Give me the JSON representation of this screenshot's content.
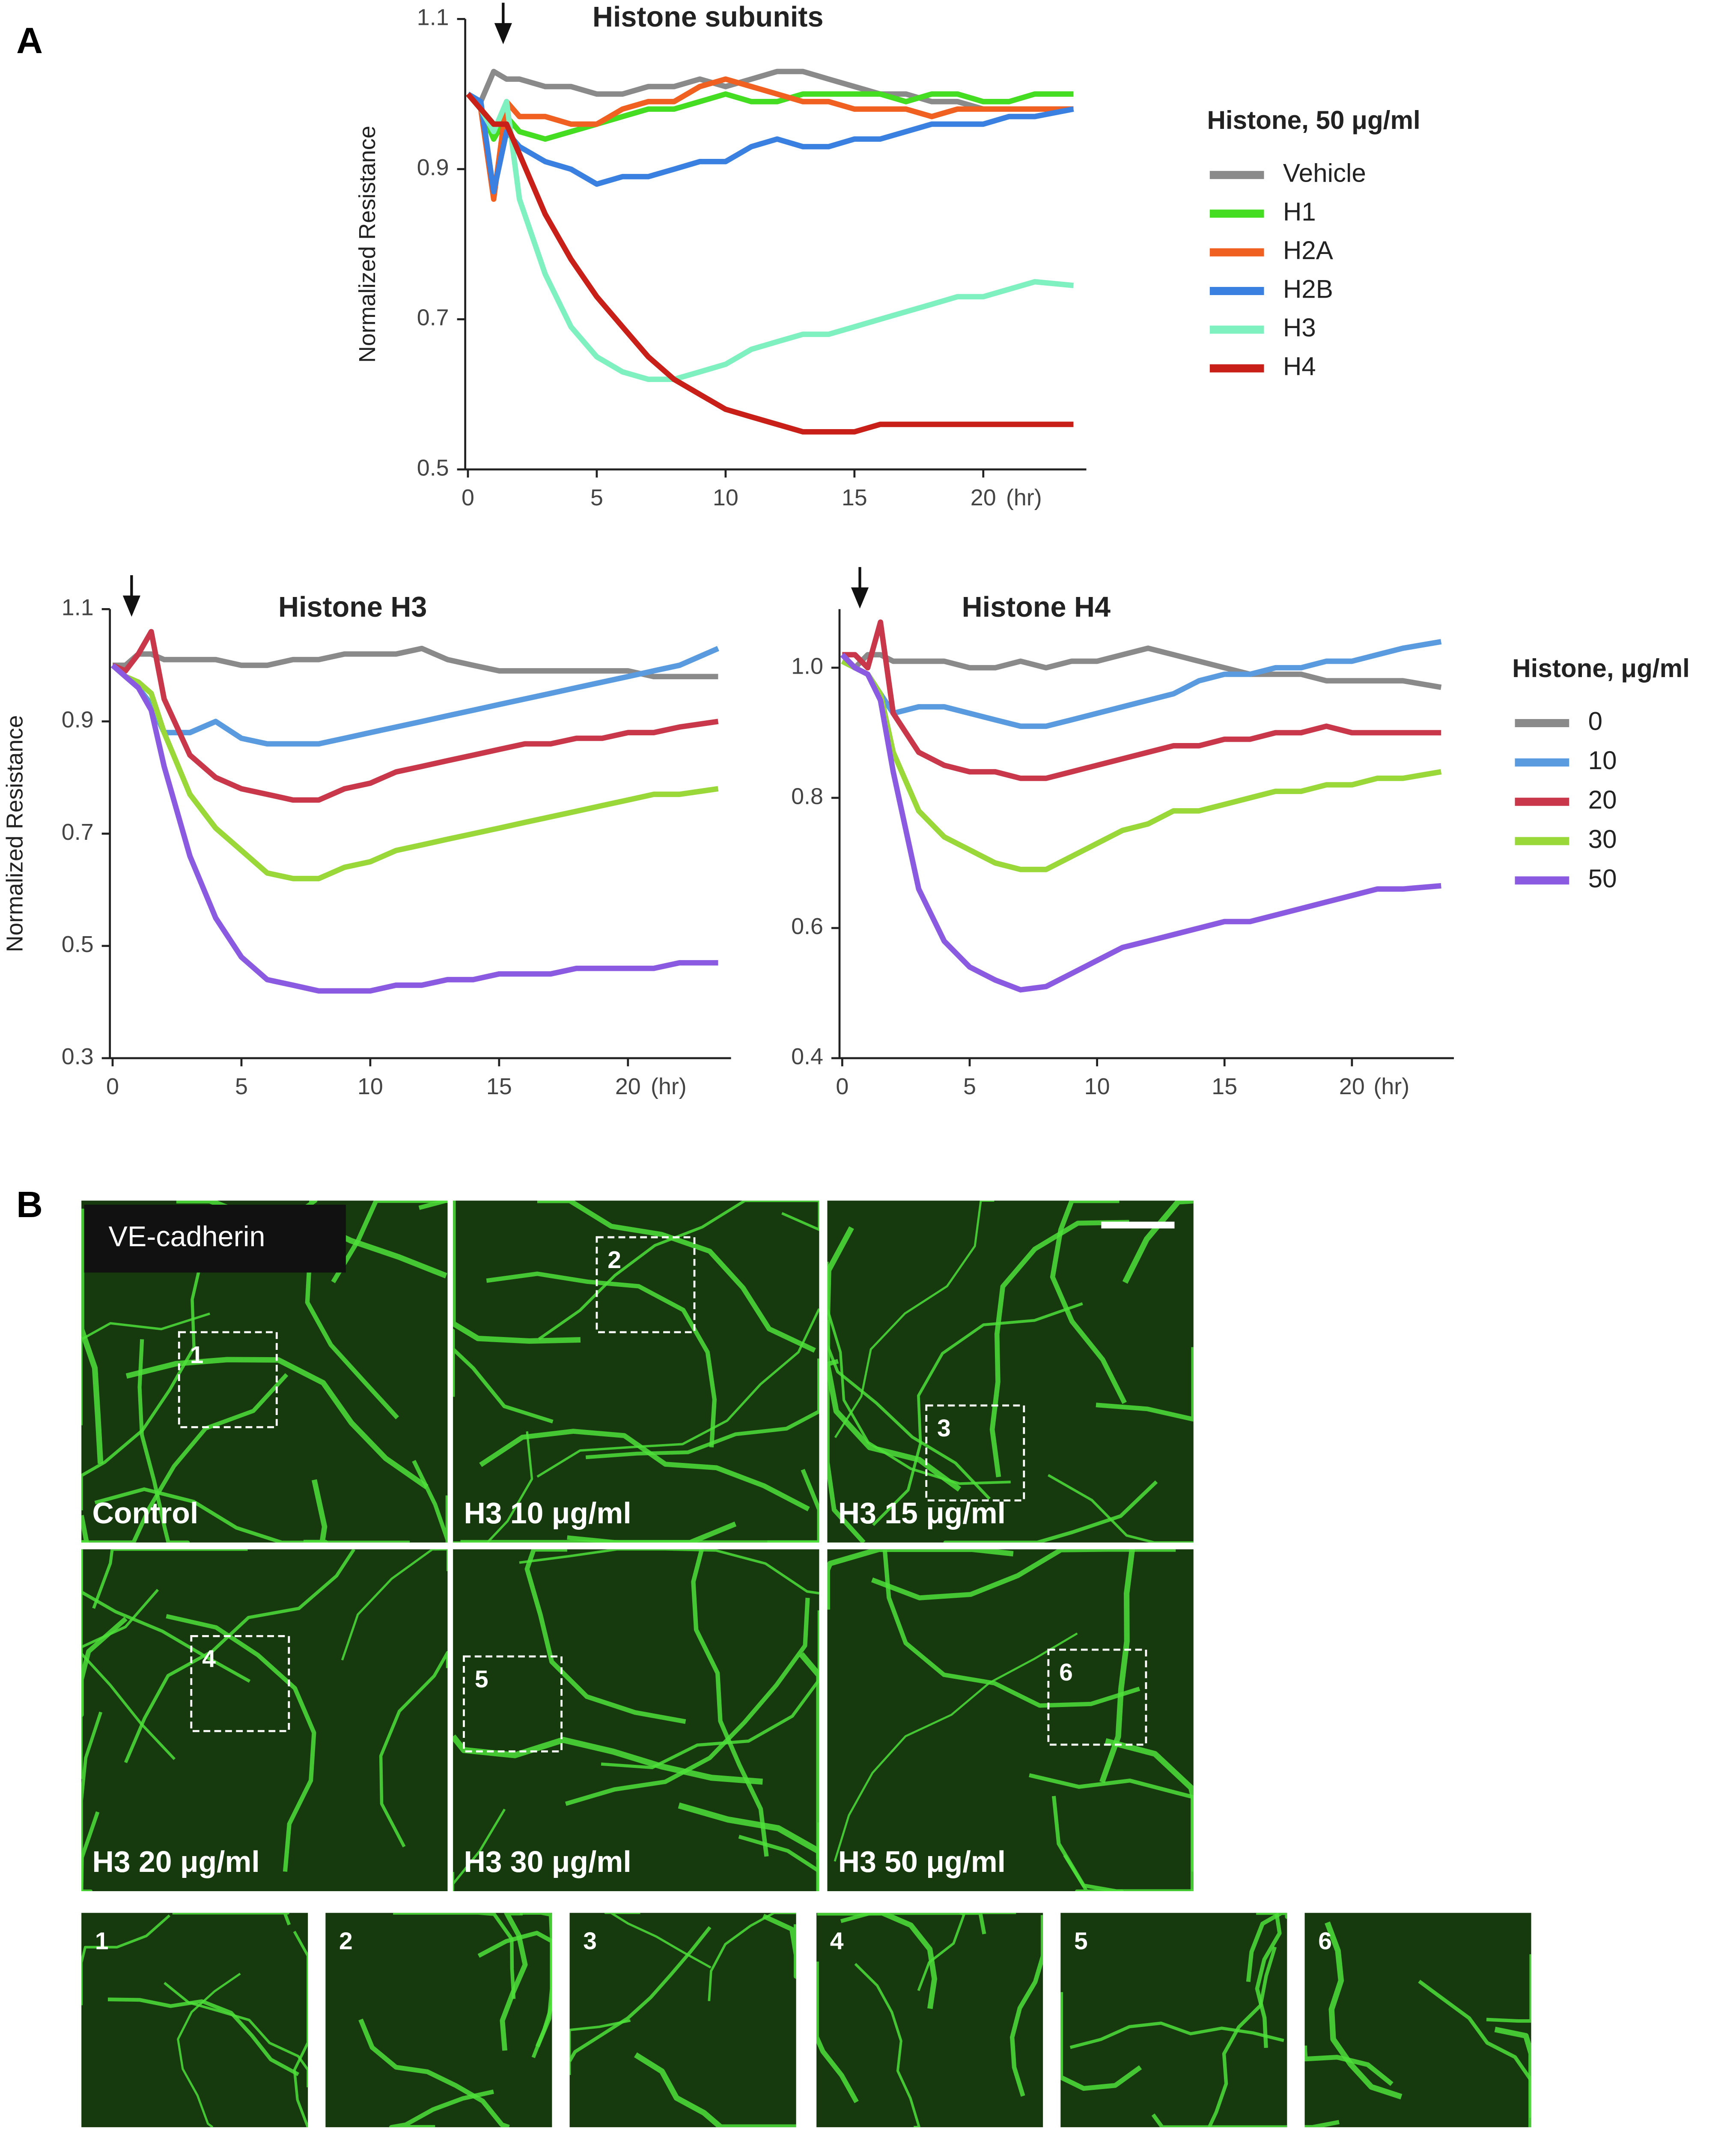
{
  "figure_labels": {
    "a": "A",
    "b": "B"
  },
  "chart_data": [
    {
      "type": "line",
      "title": "Histone subunits",
      "ylabel": "Normalized Resistance",
      "xlabel": "(hr)",
      "legend_title": "Histone, 50 μg/ml",
      "legend": "right",
      "x": [
        0,
        0.5,
        1,
        1.5,
        2,
        3,
        4,
        5,
        6,
        7,
        8,
        9,
        10,
        11,
        12,
        13,
        14,
        15,
        16,
        17,
        18,
        19,
        20,
        21,
        22,
        23.5
      ],
      "xlim": [
        0,
        24
      ],
      "xticks": [
        0,
        5,
        10,
        15,
        20
      ],
      "ylim": [
        0.5,
        1.1
      ],
      "yticks": [
        0.5,
        0.7,
        0.9,
        1.1
      ],
      "series": [
        {
          "name": "Vehicle",
          "color": "#8a8a8a",
          "values": [
            1.0,
            0.99,
            1.03,
            1.02,
            1.02,
            1.01,
            1.01,
            1.0,
            1.0,
            1.01,
            1.01,
            1.02,
            1.01,
            1.02,
            1.03,
            1.03,
            1.02,
            1.01,
            1.0,
            1.0,
            0.99,
            0.99,
            0.98,
            0.98,
            0.98,
            0.98
          ]
        },
        {
          "name": "H1",
          "color": "#44dd22",
          "values": [
            1.0,
            0.98,
            0.94,
            0.97,
            0.95,
            0.94,
            0.95,
            0.96,
            0.97,
            0.98,
            0.98,
            0.99,
            1.0,
            0.99,
            0.99,
            1.0,
            1.0,
            1.0,
            1.0,
            0.99,
            1.0,
            1.0,
            0.99,
            0.99,
            1.0,
            1.0
          ]
        },
        {
          "name": "H2A",
          "color": "#f06020",
          "values": [
            1.0,
            0.98,
            0.86,
            0.99,
            0.97,
            0.97,
            0.96,
            0.96,
            0.98,
            0.99,
            0.99,
            1.01,
            1.02,
            1.01,
            1.0,
            0.99,
            0.99,
            0.98,
            0.98,
            0.98,
            0.97,
            0.98,
            0.98,
            0.98,
            0.98,
            0.98
          ]
        },
        {
          "name": "H2B",
          "color": "#3a80e0",
          "values": [
            1.0,
            0.99,
            0.87,
            0.95,
            0.93,
            0.91,
            0.9,
            0.88,
            0.89,
            0.89,
            0.9,
            0.91,
            0.91,
            0.93,
            0.94,
            0.93,
            0.93,
            0.94,
            0.94,
            0.95,
            0.96,
            0.96,
            0.96,
            0.97,
            0.97,
            0.98
          ]
        },
        {
          "name": "H3",
          "color": "#7ff0c0",
          "values": [
            1.0,
            0.98,
            0.95,
            0.99,
            0.86,
            0.76,
            0.69,
            0.65,
            0.63,
            0.62,
            0.62,
            0.63,
            0.64,
            0.66,
            0.67,
            0.68,
            0.68,
            0.69,
            0.7,
            0.71,
            0.72,
            0.73,
            0.73,
            0.74,
            0.75,
            0.745
          ]
        },
        {
          "name": "H4",
          "color": "#c82018",
          "values": [
            1.0,
            0.98,
            0.96,
            0.96,
            0.92,
            0.84,
            0.78,
            0.73,
            0.69,
            0.65,
            0.62,
            0.6,
            0.58,
            0.57,
            0.56,
            0.55,
            0.55,
            0.55,
            0.56,
            0.56,
            0.56,
            0.56,
            0.56,
            0.56,
            0.56,
            0.56
          ]
        }
      ]
    },
    {
      "type": "line",
      "title": "Histone H3",
      "ylabel": "Normalized Resistance",
      "xlabel": "(hr)",
      "legend": "none",
      "x": [
        0,
        0.5,
        1,
        1.5,
        2,
        3,
        4,
        5,
        6,
        7,
        8,
        9,
        10,
        11,
        12,
        13,
        14,
        15,
        16,
        17,
        18,
        19,
        20,
        21,
        22,
        23.5
      ],
      "xlim": [
        0,
        24
      ],
      "xticks": [
        0,
        5,
        10,
        15,
        20
      ],
      "ylim": [
        0.3,
        1.1
      ],
      "yticks": [
        0.3,
        0.5,
        0.7,
        0.9,
        1.1
      ],
      "series": [
        {
          "name": "0",
          "color": "#8a8a8a",
          "values": [
            1.0,
            1.0,
            1.02,
            1.02,
            1.01,
            1.01,
            1.01,
            1.0,
            1.0,
            1.01,
            1.01,
            1.02,
            1.02,
            1.02,
            1.03,
            1.01,
            1.0,
            0.99,
            0.99,
            0.99,
            0.99,
            0.99,
            0.99,
            0.98,
            0.98,
            0.98
          ]
        },
        {
          "name": "10",
          "color": "#5a9be0",
          "values": [
            1.0,
            0.98,
            0.96,
            0.93,
            0.88,
            0.88,
            0.9,
            0.87,
            0.86,
            0.86,
            0.86,
            0.87,
            0.88,
            0.89,
            0.9,
            0.91,
            0.92,
            0.93,
            0.94,
            0.95,
            0.96,
            0.97,
            0.98,
            0.99,
            1.0,
            1.03
          ]
        },
        {
          "name": "20",
          "color": "#c8384a",
          "values": [
            1.0,
            0.99,
            1.02,
            1.06,
            0.94,
            0.84,
            0.8,
            0.78,
            0.77,
            0.76,
            0.76,
            0.78,
            0.79,
            0.81,
            0.82,
            0.83,
            0.84,
            0.85,
            0.86,
            0.86,
            0.87,
            0.87,
            0.88,
            0.88,
            0.89,
            0.9
          ]
        },
        {
          "name": "30",
          "color": "#9ad83a",
          "values": [
            1.0,
            0.98,
            0.97,
            0.95,
            0.88,
            0.77,
            0.71,
            0.67,
            0.63,
            0.62,
            0.62,
            0.64,
            0.65,
            0.67,
            0.68,
            0.69,
            0.7,
            0.71,
            0.72,
            0.73,
            0.74,
            0.75,
            0.76,
            0.77,
            0.77,
            0.78
          ]
        },
        {
          "name": "50",
          "color": "#8a5ae0",
          "values": [
            1.0,
            0.98,
            0.96,
            0.92,
            0.82,
            0.66,
            0.55,
            0.48,
            0.44,
            0.43,
            0.42,
            0.42,
            0.42,
            0.43,
            0.43,
            0.44,
            0.44,
            0.45,
            0.45,
            0.45,
            0.46,
            0.46,
            0.46,
            0.46,
            0.47,
            0.47
          ]
        }
      ]
    },
    {
      "type": "line",
      "title": "Histone H4",
      "xlabel": "(hr)",
      "legend_title": "Histone, μg/ml",
      "legend": "right",
      "x": [
        0,
        0.5,
        1,
        1.5,
        2,
        3,
        4,
        5,
        6,
        7,
        8,
        9,
        10,
        11,
        12,
        13,
        14,
        15,
        16,
        17,
        18,
        19,
        20,
        21,
        22,
        23.5
      ],
      "xlim": [
        0,
        24
      ],
      "xticks": [
        0,
        5,
        10,
        15,
        20
      ],
      "ylim": [
        0.4,
        1.09
      ],
      "yticks": [
        0.4,
        0.6,
        0.8,
        {
          "value": 1,
          "label": "1.0"
        }
      ],
      "series": [
        {
          "name": "0",
          "color": "#8a8a8a",
          "values": [
            1.01,
            1.0,
            1.02,
            1.02,
            1.01,
            1.01,
            1.01,
            1.0,
            1.0,
            1.01,
            1.0,
            1.01,
            1.01,
            1.02,
            1.03,
            1.02,
            1.01,
            1.0,
            0.99,
            0.99,
            0.99,
            0.98,
            0.98,
            0.98,
            0.98,
            0.97
          ]
        },
        {
          "name": "10",
          "color": "#5a9be0",
          "values": [
            1.01,
            1.0,
            0.99,
            0.96,
            0.93,
            0.94,
            0.94,
            0.93,
            0.92,
            0.91,
            0.91,
            0.92,
            0.93,
            0.94,
            0.95,
            0.96,
            0.98,
            0.99,
            0.99,
            1.0,
            1.0,
            1.01,
            1.01,
            1.02,
            1.03,
            1.04
          ]
        },
        {
          "name": "20",
          "color": "#c8384a",
          "values": [
            1.02,
            1.02,
            1.0,
            1.07,
            0.93,
            0.87,
            0.85,
            0.84,
            0.84,
            0.83,
            0.83,
            0.84,
            0.85,
            0.86,
            0.87,
            0.88,
            0.88,
            0.89,
            0.89,
            0.9,
            0.9,
            0.91,
            0.9,
            0.9,
            0.9,
            0.9
          ]
        },
        {
          "name": "30",
          "color": "#9ad83a",
          "values": [
            1.01,
            1.0,
            0.99,
            0.96,
            0.87,
            0.78,
            0.74,
            0.72,
            0.7,
            0.69,
            0.69,
            0.71,
            0.73,
            0.75,
            0.76,
            0.78,
            0.78,
            0.79,
            0.8,
            0.81,
            0.81,
            0.82,
            0.82,
            0.83,
            0.83,
            0.84
          ]
        },
        {
          "name": "50",
          "color": "#8a5ae0",
          "values": [
            1.02,
            1.0,
            0.99,
            0.95,
            0.84,
            0.66,
            0.58,
            0.54,
            0.52,
            0.505,
            0.51,
            0.53,
            0.55,
            0.57,
            0.58,
            0.59,
            0.6,
            0.61,
            0.61,
            0.62,
            0.63,
            0.64,
            0.65,
            0.66,
            0.66,
            0.665
          ]
        }
      ]
    }
  ],
  "panel_b": {
    "stain": "VE-cadherin",
    "panels": [
      "Control",
      "H3 10 μg/ml",
      "H3 15 μg/ml",
      "H3 20 μg/ml",
      "H3 30 μg/ml",
      "H3 50 μg/ml"
    ],
    "boxes": [
      "1",
      "2",
      "3",
      "4",
      "5",
      "6"
    ],
    "insets": [
      "1",
      "2",
      "3",
      "4",
      "5",
      "6"
    ]
  }
}
